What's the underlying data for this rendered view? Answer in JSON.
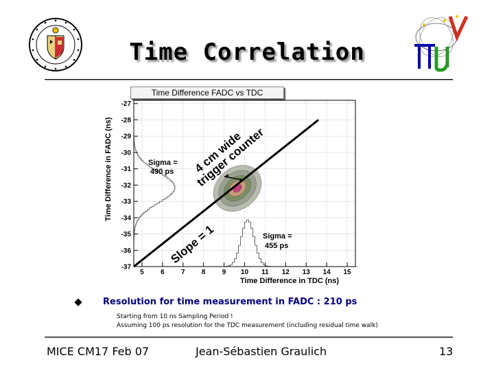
{
  "slide": {
    "title": "Time Correlation",
    "footer_left": "MICE CM17 Feb 07",
    "footer_center": "Jean-Sébastien Graulich",
    "footer_right": "13",
    "bullet": "Resolution for time measurement in FADC : 210 ps",
    "sub_bullets": [
      "Starting from 10 ns Sampling Period !",
      "Assuming 100 ps resolution for the TDC measurement (including residual time walk)"
    ],
    "logos": [
      "university-seal-logo",
      "mice-pi-mu-nu-logo"
    ]
  },
  "chart_data": {
    "type": "scatter",
    "title": "Time Difference FADC vs TDC",
    "xlabel": "Time Difference in TDC (ns)",
    "ylabel": "Time Difference in FADC (ns)",
    "xlim": [
      4.6,
      15.4
    ],
    "ylim": [
      -37,
      -26.8
    ],
    "xticks": [
      "5",
      "6",
      "7",
      "8",
      "9",
      "10",
      "11",
      "12",
      "13",
      "14",
      "15"
    ],
    "yticks": [
      "-27",
      "-28",
      "-29",
      "-30",
      "-31",
      "-32",
      "-33",
      "-34",
      "-35",
      "-36",
      "-37"
    ],
    "grid": true,
    "cluster": {
      "center": [
        9.65,
        -32.2
      ],
      "spread_x": 0.55,
      "spread_y": 0.9
    },
    "fit_line": {
      "slope": 1,
      "x": [
        4.6,
        13.6
      ],
      "y": [
        -37.0,
        -28.0
      ]
    },
    "projection_y": {
      "label": "Sigma =\n490 ps",
      "mean": -32.2,
      "sigma_ns": 0.49
    },
    "projection_x": {
      "label": "Sigma =\n455 ps",
      "mean": 10.1,
      "sigma_ns": 0.455
    },
    "annotations": {
      "slope": "Slope = 1",
      "trigger_line1": "4 cm wide",
      "trigger_line2": "trigger counter",
      "sigma_y_line1": "Sigma =",
      "sigma_y_line2": "490 ps",
      "sigma_x_line1": "Sigma =",
      "sigma_x_line2": "455 ps"
    },
    "colors": {
      "fit_line": "#000000",
      "core": "#c0407a",
      "outer": "#9aa090",
      "mid": "#7a8e60"
    }
  }
}
